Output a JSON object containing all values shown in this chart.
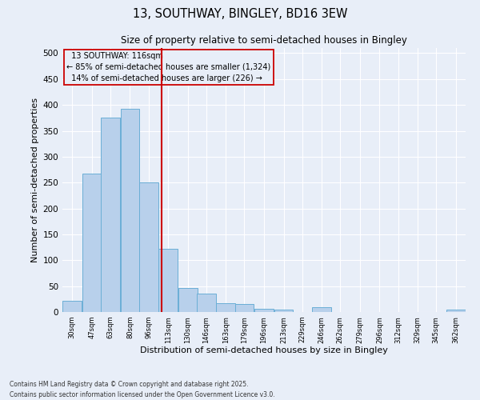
{
  "title": "13, SOUTHWAY, BINGLEY, BD16 3EW",
  "subtitle": "Size of property relative to semi-detached houses in Bingley",
  "xlabel": "Distribution of semi-detached houses by size in Bingley",
  "ylabel": "Number of semi-detached properties",
  "categories": [
    "30sqm",
    "47sqm",
    "63sqm",
    "80sqm",
    "96sqm",
    "113sqm",
    "130sqm",
    "146sqm",
    "163sqm",
    "179sqm",
    "196sqm",
    "213sqm",
    "229sqm",
    "246sqm",
    "262sqm",
    "279sqm",
    "296sqm",
    "312sqm",
    "329sqm",
    "345sqm",
    "362sqm"
  ],
  "bin_left_edges": [
    30,
    47,
    63,
    80,
    96,
    113,
    130,
    146,
    163,
    179,
    196,
    213,
    229,
    246,
    262,
    279,
    296,
    312,
    329,
    345,
    362
  ],
  "bin_width": 17,
  "values": [
    22,
    268,
    375,
    393,
    250,
    122,
    46,
    35,
    17,
    15,
    6,
    4,
    0,
    9,
    0,
    0,
    0,
    0,
    0,
    0,
    4
  ],
  "bar_color": "#b8d0eb",
  "bar_edge_color": "#6aaed6",
  "property_size": 116,
  "property_label": "13 SOUTHWAY: 116sqm",
  "pct_smaller": 85,
  "n_smaller": 1324,
  "pct_larger": 14,
  "n_larger": 226,
  "vline_color": "#cc0000",
  "annotation_box_edgecolor": "#cc0000",
  "background_color": "#e8eef8",
  "grid_color": "#ffffff",
  "footer_line1": "Contains HM Land Registry data © Crown copyright and database right 2025.",
  "footer_line2": "Contains public sector information licensed under the Open Government Licence v3.0.",
  "ylim": [
    0,
    510
  ],
  "yticks": [
    0,
    50,
    100,
    150,
    200,
    250,
    300,
    350,
    400,
    450,
    500
  ]
}
